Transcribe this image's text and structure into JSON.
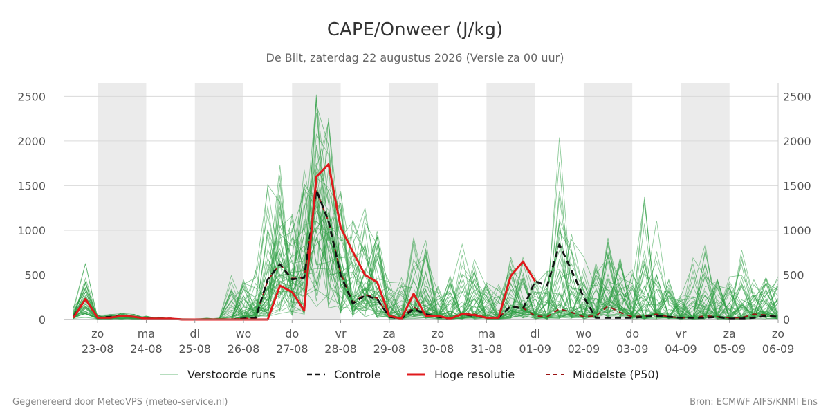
{
  "chart_data": {
    "type": "line",
    "title": "CAPE/Onweer (J/kg)",
    "subtitle": "De Bilt, zaterdag 22 augustus 2026 (Versie za 00 uur)",
    "ylim": [
      0,
      2650
    ],
    "yticks": [
      0,
      500,
      1000,
      1500,
      2000,
      2500
    ],
    "grid": true,
    "legend_placement": "bottom",
    "x_range_days": [
      22.3,
      37.0
    ],
    "x_ticks": [
      {
        "day": 23,
        "weekday": "zo",
        "date": "23-08"
      },
      {
        "day": 24,
        "weekday": "ma",
        "date": "24-08"
      },
      {
        "day": 25,
        "weekday": "di",
        "date": "25-08"
      },
      {
        "day": 26,
        "weekday": "wo",
        "date": "26-08"
      },
      {
        "day": 27,
        "weekday": "do",
        "date": "27-08"
      },
      {
        "day": 28,
        "weekday": "vr",
        "date": "28-08"
      },
      {
        "day": 29,
        "weekday": "za",
        "date": "29-08"
      },
      {
        "day": 30,
        "weekday": "zo",
        "date": "30-08"
      },
      {
        "day": 31,
        "weekday": "ma",
        "date": "31-08"
      },
      {
        "day": 32,
        "weekday": "di",
        "date": "01-09"
      },
      {
        "day": 33,
        "weekday": "wo",
        "date": "02-09"
      },
      {
        "day": 34,
        "weekday": "do",
        "date": "03-09"
      },
      {
        "day": 35,
        "weekday": "vr",
        "date": "04-09"
      },
      {
        "day": 36,
        "weekday": "za",
        "date": "05-09"
      },
      {
        "day": 37,
        "weekday": "zo",
        "date": "06-09"
      }
    ],
    "shaded_days": [
      [
        23,
        24
      ],
      [
        25,
        26
      ],
      [
        27,
        28
      ],
      [
        29,
        30
      ],
      [
        31,
        32
      ],
      [
        33,
        34
      ],
      [
        35,
        36
      ]
    ],
    "ensemble": {
      "name": "Verstoorde runs",
      "color": "#2e9e44",
      "members": 50,
      "x": [
        22.5,
        22.75,
        23.0,
        23.25,
        23.5,
        23.75,
        24.0,
        24.25,
        24.5,
        24.75,
        25.0,
        25.25,
        25.5,
        25.75,
        26.0,
        26.25,
        26.5,
        26.75,
        27.0,
        27.25,
        27.5,
        27.75,
        28.0,
        28.25,
        28.5,
        28.75,
        29.0,
        29.25,
        29.5,
        29.75,
        30.0,
        30.25,
        30.5,
        30.75,
        31.0,
        31.25,
        31.5,
        31.75,
        32.0,
        32.25,
        32.5,
        32.75,
        33.0,
        33.25,
        33.5,
        33.75,
        34.0,
        34.25,
        34.5,
        34.75,
        35.0,
        35.25,
        35.5,
        35.75,
        36.0,
        36.25,
        36.5,
        36.75,
        37.0
      ],
      "median": [
        60,
        220,
        15,
        20,
        40,
        30,
        10,
        10,
        5,
        0,
        0,
        0,
        0,
        0,
        30,
        100,
        350,
        560,
        420,
        500,
        1350,
        1000,
        500,
        200,
        250,
        220,
        50,
        20,
        100,
        100,
        40,
        20,
        50,
        50,
        20,
        20,
        100,
        130,
        60,
        40,
        100,
        80,
        50,
        80,
        200,
        150,
        60,
        40,
        80,
        40,
        30,
        30,
        50,
        40,
        20,
        30,
        70,
        60,
        40
      ],
      "envelope": [
        180,
        630,
        50,
        60,
        80,
        60,
        40,
        30,
        20,
        10,
        10,
        20,
        20,
        500,
        450,
        580,
        1700,
        1900,
        1200,
        1700,
        2640,
        2480,
        1500,
        1300,
        1260,
        1000,
        480,
        500,
        1000,
        950,
        400,
        500,
        860,
        780,
        500,
        400,
        740,
        720,
        500,
        600,
        2090,
        1110,
        800,
        650,
        950,
        750,
        600,
        1520,
        1150,
        500,
        300,
        750,
        880,
        450,
        500,
        810,
        600,
        500,
        500
      ]
    },
    "series": [
      {
        "name": "Controle",
        "color": "#111111",
        "dash": "dashed",
        "x": [
          22.5,
          22.75,
          23.0,
          23.25,
          23.5,
          23.75,
          24.0,
          24.25,
          24.5,
          24.75,
          25.0,
          25.25,
          25.5,
          25.75,
          26.0,
          26.25,
          26.5,
          26.75,
          27.0,
          27.25,
          27.5,
          27.75,
          28.0,
          28.25,
          28.5,
          28.75,
          29.0,
          29.25,
          29.5,
          29.75,
          30.0,
          30.25,
          30.5,
          30.75,
          31.0,
          31.25,
          31.5,
          31.75,
          32.0,
          32.25,
          32.5,
          32.75,
          33.0,
          33.25,
          33.5,
          33.75,
          34.0,
          34.25,
          34.5,
          34.75,
          35.0,
          35.25,
          35.5,
          35.75,
          36.0,
          36.25,
          36.5,
          36.75,
          37.0
        ],
        "y": [
          30,
          230,
          20,
          30,
          40,
          30,
          10,
          10,
          10,
          0,
          0,
          0,
          0,
          0,
          10,
          20,
          450,
          620,
          450,
          470,
          1450,
          1100,
          500,
          180,
          270,
          230,
          30,
          10,
          120,
          60,
          30,
          10,
          60,
          40,
          20,
          20,
          150,
          120,
          430,
          380,
          840,
          550,
          250,
          20,
          20,
          20,
          20,
          30,
          40,
          30,
          20,
          20,
          20,
          30,
          10,
          10,
          20,
          40,
          30
        ]
      },
      {
        "name": "Hoge resolutie",
        "color": "#e0191c",
        "dash": "solid",
        "x": [
          22.5,
          22.75,
          23.0,
          23.25,
          23.5,
          23.75,
          24.0,
          24.25,
          24.5,
          24.75,
          25.0,
          25.25,
          25.5,
          25.75,
          26.0,
          26.25,
          26.5,
          26.75,
          27.0,
          27.25,
          27.5,
          27.75,
          28.0,
          28.25,
          28.5,
          28.75,
          29.0,
          29.25,
          29.5,
          29.75,
          30.0,
          30.25,
          30.5,
          30.75,
          31.0,
          31.25,
          31.5,
          31.75,
          32.0
        ],
        "y": [
          20,
          230,
          20,
          20,
          40,
          30,
          10,
          10,
          10,
          0,
          0,
          0,
          0,
          0,
          0,
          0,
          0,
          380,
          310,
          100,
          1600,
          1740,
          1030,
          760,
          500,
          420,
          40,
          10,
          290,
          40,
          40,
          10,
          60,
          50,
          20,
          20,
          490,
          650,
          430
        ]
      },
      {
        "name": "Middelste (P50)",
        "color": "#9b1313",
        "dash": "dashed",
        "x": [
          22.5,
          22.75,
          23.0,
          23.25,
          23.5,
          23.75,
          24.0,
          24.25,
          24.5,
          24.75,
          25.0,
          25.25,
          25.5,
          25.75,
          26.0,
          26.25,
          26.5,
          26.75,
          27.0,
          27.25,
          27.5,
          27.75,
          28.0,
          28.25,
          28.5,
          28.75,
          29.0,
          29.25,
          29.5,
          29.75,
          30.0,
          30.25,
          30.5,
          30.75,
          31.0,
          31.25,
          31.5,
          31.75,
          32.0,
          32.25,
          32.5,
          32.75,
          33.0,
          33.25,
          33.5,
          33.75,
          34.0,
          34.25,
          34.5,
          34.75,
          35.0,
          35.25,
          35.5,
          35.75,
          36.0,
          36.25,
          36.5,
          36.75,
          37.0
        ],
        "y": [
          20,
          220,
          20,
          25,
          35,
          30,
          10,
          10,
          5,
          0,
          0,
          0,
          0,
          0,
          10,
          20,
          440,
          620,
          460,
          470,
          1440,
          1100,
          520,
          190,
          280,
          240,
          30,
          20,
          140,
          60,
          30,
          10,
          70,
          60,
          20,
          20,
          150,
          130,
          40,
          30,
          120,
          80,
          30,
          40,
          150,
          80,
          30,
          40,
          60,
          30,
          20,
          20,
          40,
          30,
          20,
          20,
          60,
          50,
          30
        ]
      }
    ],
    "legend": [
      "Verstoorde runs",
      "Controle",
      "Hoge resolutie",
      "Middelste (P50)"
    ]
  },
  "footer": {
    "left": "Gegenereerd door MeteoVPS (meteo-service.nl)",
    "right": "Bron: ECMWF AIFS/KNMI Ens"
  },
  "colors": {
    "shade": "#ebebeb",
    "grid": "#d9d9d9",
    "axis": "#cccccc"
  }
}
